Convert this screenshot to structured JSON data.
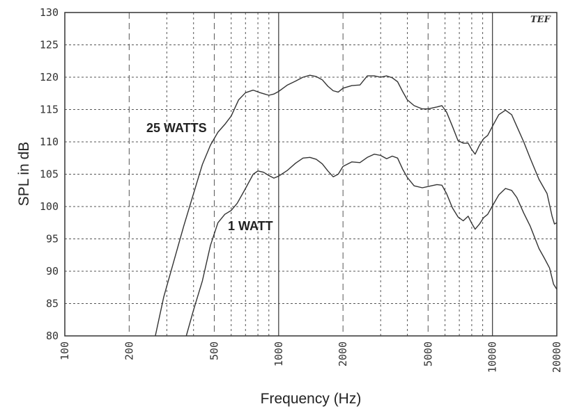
{
  "chart_data": {
    "type": "line",
    "xlabel": "Frequency (Hz)",
    "ylabel": "SPL in dB",
    "xscale": "log",
    "xlim": [
      100,
      20000
    ],
    "ylim": [
      80,
      130
    ],
    "x_ticks": [
      100,
      200,
      500,
      1000,
      2000,
      5000,
      10000,
      20000
    ],
    "x_tick_labels": [
      "100",
      "200",
      "500",
      "1000",
      "2000",
      "5000",
      "10000",
      "20000"
    ],
    "y_ticks": [
      80,
      85,
      90,
      95,
      100,
      105,
      110,
      115,
      120,
      125,
      130
    ],
    "y_tick_labels": [
      "80",
      "85",
      "90",
      "95",
      "100",
      "105",
      "110",
      "115",
      "120",
      "125",
      "130"
    ],
    "grid": true,
    "logo_text": "TEF",
    "annotations": [
      {
        "text": "25 WATTS",
        "series": 0
      },
      {
        "text": "1 WATT",
        "series": 1
      }
    ],
    "series": [
      {
        "color": "#333333",
        "points": [
          [
            265,
            80
          ],
          [
            290,
            86
          ],
          [
            320,
            91
          ],
          [
            360,
            97
          ],
          [
            400,
            102
          ],
          [
            440,
            106.5
          ],
          [
            480,
            109.5
          ],
          [
            520,
            111.5
          ],
          [
            560,
            112.7
          ],
          [
            600,
            114
          ],
          [
            650,
            116.5
          ],
          [
            700,
            117.6
          ],
          [
            760,
            118
          ],
          [
            820,
            117.6
          ],
          [
            900,
            117.2
          ],
          [
            950,
            117.4
          ],
          [
            1000,
            117.8
          ],
          [
            1100,
            118.8
          ],
          [
            1200,
            119.4
          ],
          [
            1300,
            120
          ],
          [
            1400,
            120.3
          ],
          [
            1500,
            120.1
          ],
          [
            1600,
            119.6
          ],
          [
            1700,
            118.6
          ],
          [
            1800,
            117.9
          ],
          [
            1900,
            117.7
          ],
          [
            2000,
            118.3
          ],
          [
            2200,
            118.7
          ],
          [
            2400,
            118.8
          ],
          [
            2600,
            120.2
          ],
          [
            2800,
            120.2
          ],
          [
            3000,
            120
          ],
          [
            3200,
            120.2
          ],
          [
            3400,
            119.9
          ],
          [
            3600,
            119.3
          ],
          [
            3800,
            117.8
          ],
          [
            4000,
            116.5
          ],
          [
            4300,
            115.6
          ],
          [
            4700,
            115.1
          ],
          [
            5000,
            115.1
          ],
          [
            5500,
            115.4
          ],
          [
            5800,
            115.6
          ],
          [
            6100,
            114.6
          ],
          [
            6500,
            112.4
          ],
          [
            6900,
            110.2
          ],
          [
            7300,
            109.8
          ],
          [
            7700,
            109.8
          ],
          [
            8000,
            108.8
          ],
          [
            8300,
            108.1
          ],
          [
            8700,
            109.5
          ],
          [
            9100,
            110.5
          ],
          [
            9500,
            111
          ],
          [
            10000,
            112.4
          ],
          [
            10700,
            114.2
          ],
          [
            11500,
            114.9
          ],
          [
            12300,
            114.2
          ],
          [
            13000,
            112.4
          ],
          [
            14000,
            110
          ],
          [
            15000,
            107.5
          ],
          [
            16500,
            104.2
          ],
          [
            18000,
            102
          ],
          [
            19000,
            98.5
          ],
          [
            19500,
            97.3
          ],
          [
            20000,
            97.5
          ]
        ]
      },
      {
        "color": "#333333",
        "points": [
          [
            370,
            80
          ],
          [
            400,
            84
          ],
          [
            440,
            88.5
          ],
          [
            480,
            94
          ],
          [
            520,
            97.5
          ],
          [
            560,
            98.8
          ],
          [
            600,
            99.4
          ],
          [
            640,
            100.5
          ],
          [
            700,
            102.8
          ],
          [
            760,
            105
          ],
          [
            800,
            105.5
          ],
          [
            850,
            105.3
          ],
          [
            900,
            104.8
          ],
          [
            950,
            104.4
          ],
          [
            1000,
            104.7
          ],
          [
            1100,
            105.6
          ],
          [
            1200,
            106.7
          ],
          [
            1300,
            107.5
          ],
          [
            1400,
            107.6
          ],
          [
            1500,
            107.3
          ],
          [
            1600,
            106.6
          ],
          [
            1700,
            105.5
          ],
          [
            1800,
            104.6
          ],
          [
            1900,
            105
          ],
          [
            2000,
            106.2
          ],
          [
            2200,
            106.9
          ],
          [
            2400,
            106.8
          ],
          [
            2600,
            107.6
          ],
          [
            2800,
            108.1
          ],
          [
            3000,
            107.9
          ],
          [
            3200,
            107.4
          ],
          [
            3400,
            107.8
          ],
          [
            3600,
            107.5
          ],
          [
            3800,
            105.8
          ],
          [
            4000,
            104.5
          ],
          [
            4300,
            103.2
          ],
          [
            4700,
            102.9
          ],
          [
            5000,
            103.1
          ],
          [
            5500,
            103.4
          ],
          [
            5800,
            103.3
          ],
          [
            6100,
            102
          ],
          [
            6500,
            99.8
          ],
          [
            6900,
            98.4
          ],
          [
            7300,
            97.8
          ],
          [
            7700,
            98.5
          ],
          [
            8000,
            97.4
          ],
          [
            8300,
            96.5
          ],
          [
            8700,
            97.3
          ],
          [
            9100,
            98.3
          ],
          [
            9500,
            98.8
          ],
          [
            10000,
            100.1
          ],
          [
            10700,
            101.8
          ],
          [
            11500,
            102.8
          ],
          [
            12300,
            102.5
          ],
          [
            13000,
            101.4
          ],
          [
            14000,
            99
          ],
          [
            15000,
            97
          ],
          [
            16500,
            93.5
          ],
          [
            17500,
            92
          ],
          [
            18500,
            90.5
          ],
          [
            19300,
            88
          ],
          [
            20000,
            87.2
          ]
        ]
      }
    ]
  }
}
